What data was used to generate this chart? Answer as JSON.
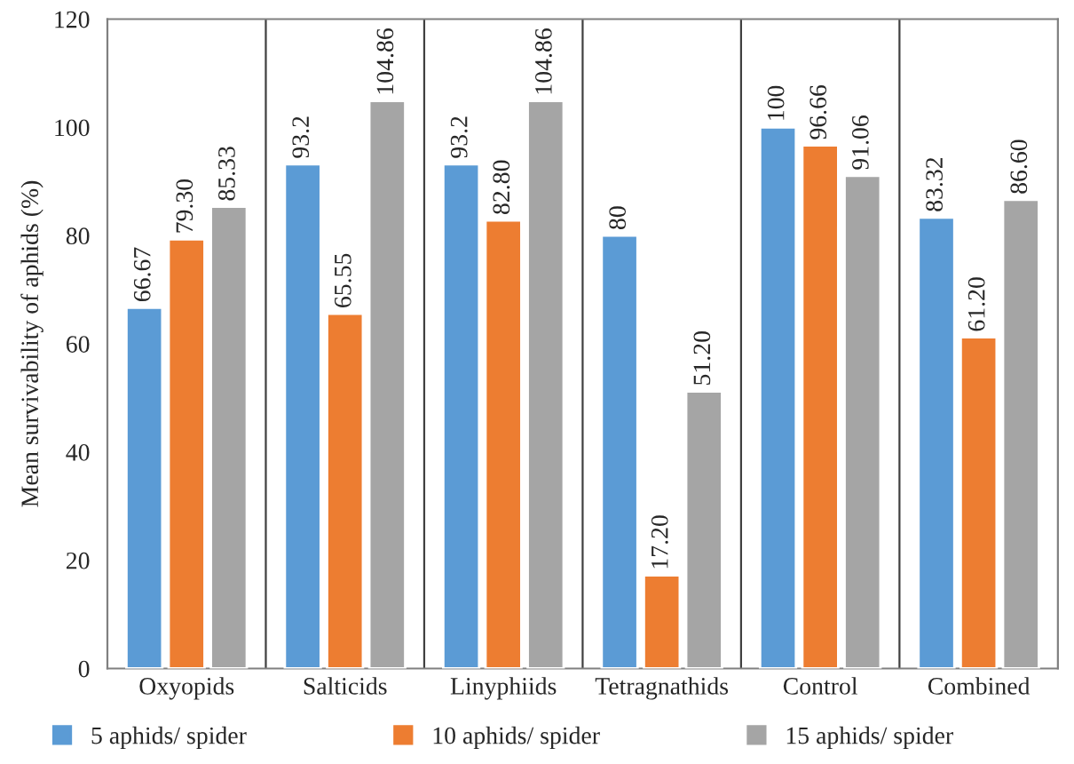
{
  "chart_data": {
    "type": "bar",
    "ylabel": "Mean survivability of aphids (%)",
    "categories": [
      "Oxyopids",
      "Salticids",
      "Linyphiids",
      "Tetragnathids",
      "Control",
      "Combined"
    ],
    "series": [
      {
        "name": "5 aphids/ spider",
        "color": "#5b9bd5",
        "values": [
          66.67,
          93.2,
          93.2,
          80,
          100,
          83.32
        ],
        "value_labels": [
          "66.67",
          "93.2",
          "93.2",
          "80",
          "100",
          "83.32"
        ]
      },
      {
        "name": "10 aphids/ spider",
        "color": "#ed7d31",
        "values": [
          79.3,
          65.55,
          82.8,
          17.2,
          96.66,
          61.2
        ],
        "value_labels": [
          "79.30",
          "65.55",
          "82.80",
          "17.20",
          "96.66",
          "61.20"
        ]
      },
      {
        "name": "15 aphids/ spider",
        "color": "#a5a5a5",
        "values": [
          85.33,
          104.86,
          104.86,
          51.2,
          91.06,
          86.6
        ],
        "value_labels": [
          "85.33",
          "104.86",
          "104.86",
          "51.20",
          "91.06",
          "86.60"
        ]
      }
    ],
    "ylim": [
      0,
      120
    ],
    "yticks": [
      0,
      20,
      40,
      60,
      80,
      100,
      120
    ],
    "grid": "x",
    "legend": "bottom"
  }
}
